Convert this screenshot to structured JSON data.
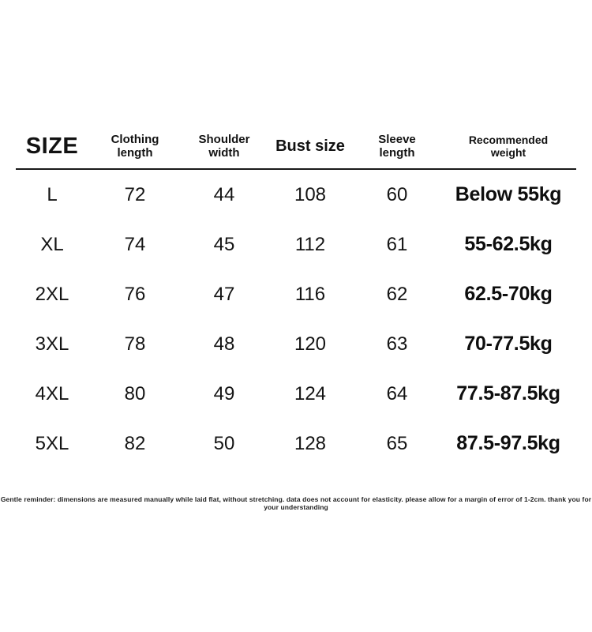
{
  "page": {
    "background_color": "#ffffff",
    "text_color": "#111111"
  },
  "header": {
    "size": "SIZE",
    "clothing_length": [
      "Clothing",
      "length"
    ],
    "shoulder_width": [
      "Shoulder",
      "width"
    ],
    "bust_size": "Bust size",
    "sleeve_length": [
      "Sleeve",
      "length"
    ],
    "recommended_weight": [
      "Recommended",
      "weight"
    ]
  },
  "chart_data": {
    "type": "table",
    "columns": [
      "SIZE",
      "Clothing length",
      "Shoulder width",
      "Bust size",
      "Sleeve length",
      "Recommended weight"
    ],
    "rows": [
      [
        "L",
        "72",
        "44",
        "108",
        "60",
        "Below 55kg"
      ],
      [
        "XL",
        "74",
        "45",
        "112",
        "61",
        "55-62.5kg"
      ],
      [
        "2XL",
        "76",
        "47",
        "116",
        "62",
        "62.5-70kg"
      ],
      [
        "3XL",
        "78",
        "48",
        "120",
        "63",
        "70-77.5kg"
      ],
      [
        "4XL",
        "80",
        "49",
        "124",
        "64",
        "77.5-87.5kg"
      ],
      [
        "5XL",
        "82",
        "50",
        "128",
        "65",
        "87.5-97.5kg"
      ]
    ],
    "title": "",
    "legend": [],
    "grid": "header-underline-only"
  },
  "footer": {
    "note": "Gentle reminder: dimensions are measured manually while laid flat, without stretching. data does not account for elasticity. please allow for a margin of error of 1-2cm. thank you for your understanding"
  }
}
